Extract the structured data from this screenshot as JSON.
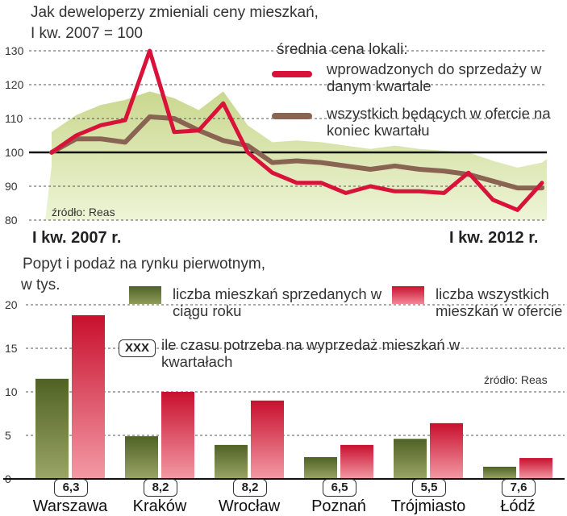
{
  "chart_data": [
    {
      "type": "line",
      "title": "Jak deweloperzy zmieniali ceny mieszkań,",
      "subtitle": "I kw. 2007 = 100",
      "legend_title": "średnia cena lokali:",
      "x_start_label": "I kw. 2007 r.",
      "x_end_label": "I kw. 2012 r.",
      "source": "źródło: Reas",
      "ylim": [
        80,
        130
      ],
      "yticks": [
        80,
        90,
        100,
        110,
        120,
        130
      ],
      "baseline": 100,
      "series": [
        {
          "name": "wprowadzonych do sprzedaży w danym kwartale",
          "color": "#d9123a",
          "values": [
            100,
            105,
            108,
            109.5,
            130,
            106,
            106.5,
            114.5,
            100,
            94,
            91,
            91,
            88,
            90,
            88.5,
            88.5,
            88,
            94,
            86,
            83,
            91
          ]
        },
        {
          "name": "wszystkich będących w ofercie na koniec kwartału",
          "color": "#8a6452",
          "values": [
            100,
            104,
            104,
            103,
            110.5,
            110,
            106.5,
            103.5,
            102,
            97,
            97.5,
            97,
            96,
            95,
            96,
            95,
            94.5,
            93.5,
            91.5,
            89.5,
            89.5
          ]
        }
      ]
    },
    {
      "type": "bar",
      "title": "Popyt i podaż na rynku pierwotnym,",
      "ylabel": "w tys.",
      "ylim": [
        0,
        20
      ],
      "yticks": [
        0,
        5,
        10,
        15,
        20
      ],
      "source": "źródło: Reas",
      "categories": [
        "Warszawa",
        "Kraków",
        "Wrocław",
        "Poznań",
        "Trójmiasto",
        "Łódź"
      ],
      "series": [
        {
          "name": "liczba mieszkań sprzedanych w ciągu roku",
          "color": "#5a6b2c",
          "values": [
            11.5,
            4.9,
            3.9,
            2.5,
            4.6,
            1.4
          ]
        },
        {
          "name": "liczba wszystkich mieszkań w ofercie",
          "color": "#d9123a",
          "values": [
            18.8,
            10,
            9,
            3.9,
            6.4,
            2.4
          ]
        }
      ],
      "months_to_sell": [
        "6,3",
        "8,2",
        "8,2",
        "6,5",
        "5,5",
        "7,6"
      ],
      "badge_legend_sample": "XXX",
      "badge_legend_text": "ile czasu potrzeba na wyprzedaż mieszkań w kwartałach"
    }
  ]
}
